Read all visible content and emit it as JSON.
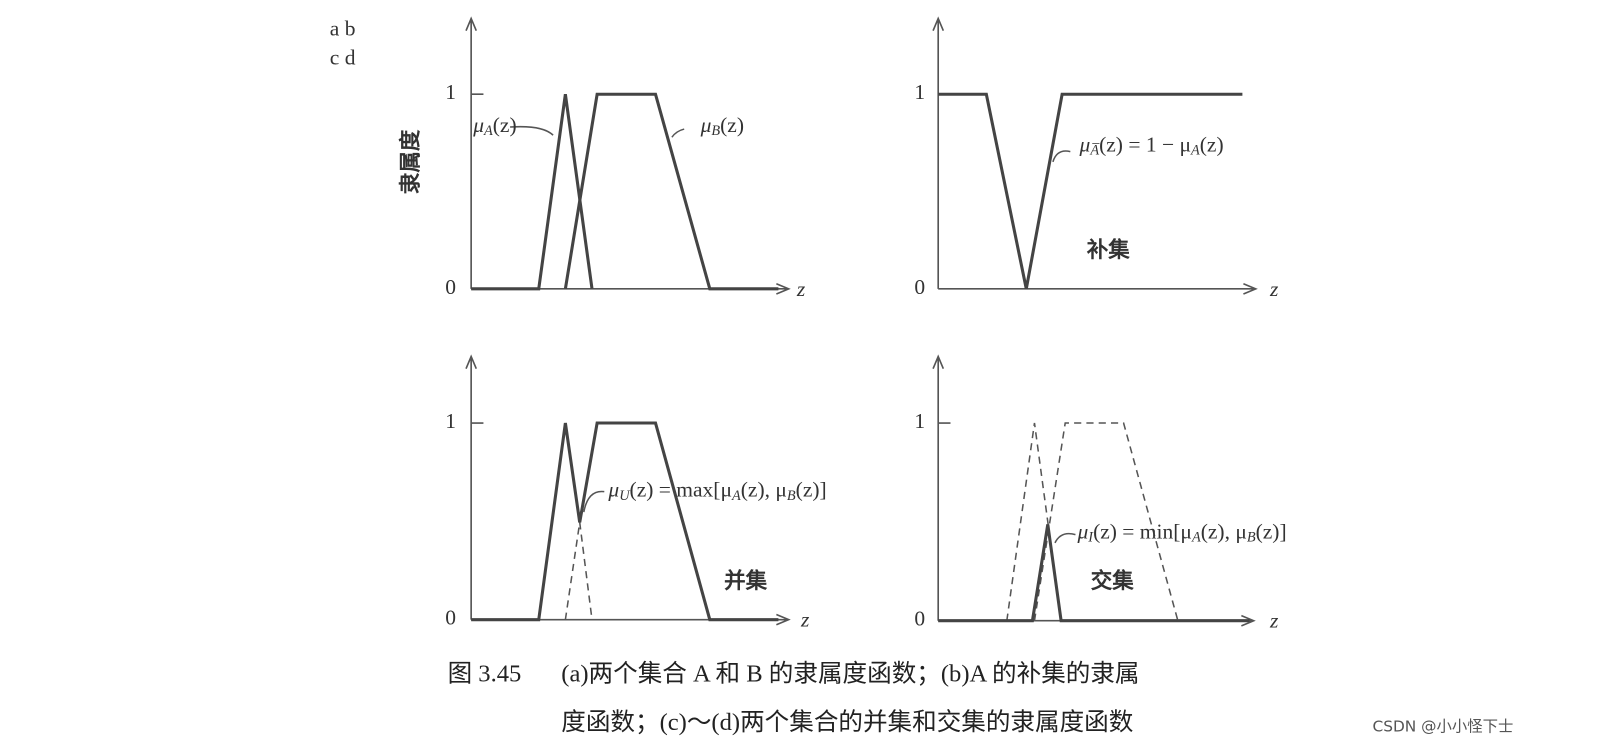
{
  "panel_letters": [
    "a  b",
    "c  d"
  ],
  "y_label": "隶属度",
  "panels": [
    {
      "ticks": [
        "1",
        "0"
      ],
      "axis": "z",
      "annotations": [
        [
          "μ",
          "A",
          "(z)"
        ],
        [
          "μ",
          "B",
          "(z)"
        ]
      ]
    },
    {
      "ticks": [
        "1",
        "0"
      ],
      "axis": "z",
      "annotations": [
        [
          "μ",
          "A̅",
          "(z) = 1 − μ",
          "A",
          "(z)"
        ]
      ],
      "set_label": "补集"
    },
    {
      "ticks": [
        "1",
        "0"
      ],
      "axis": "z",
      "annotations": [
        [
          "μ",
          "U",
          "(z) = max[μ",
          "A",
          "(z), μ",
          "B",
          "(z)]"
        ]
      ],
      "set_label": "并集"
    },
    {
      "ticks": [
        "1",
        "0"
      ],
      "axis": "z",
      "annotations": [
        [
          "μ",
          "I",
          "(z) = min[μ",
          "A",
          "(z), μ",
          "B",
          "(z)]"
        ]
      ],
      "set_label": "交集"
    }
  ],
  "caption": {
    "number": "图 3.45",
    "lines": [
      "(a)两个集合 A 和 B 的隶属度函数；(b)A 的补集的隶属",
      "度函数；(c)～(d)两个集合的并集和交集的隶属度函数"
    ]
  },
  "watermark": "CSDN @小小怪下士"
}
